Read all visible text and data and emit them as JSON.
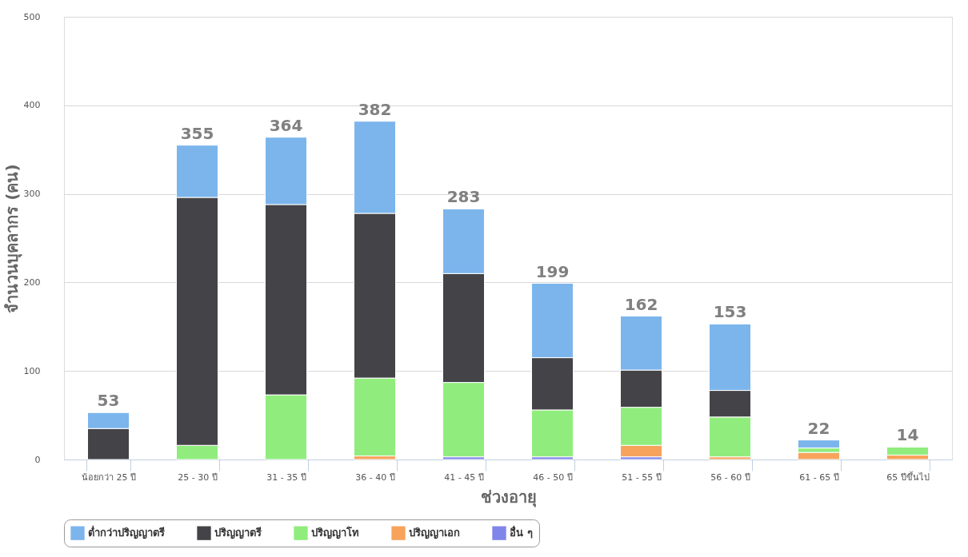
{
  "chart_data": {
    "type": "bar",
    "stacked": true,
    "xlabel": "ช่วงอายุ",
    "ylabel": "จำนวนบุคลากร (คน)",
    "categories": [
      "น้อยกว่า 25 ปี",
      "25 - 30 ปี",
      "31 - 35 ปี",
      "36 - 40 ปี",
      "41 - 45 ปี",
      "46 - 50 ปี",
      "51 - 55 ปี",
      "56 - 60 ปี",
      "61 - 65 ปี",
      "65 ปีขึ้นไป"
    ],
    "series": [
      {
        "name": "อื่น ๆ",
        "color": "#8085e9",
        "values": [
          null,
          null,
          null,
          null,
          3,
          3,
          3,
          null,
          null,
          null
        ]
      },
      {
        "name": "ปริญญาเอก",
        "color": "#f7a35c",
        "values": [
          null,
          null,
          null,
          4,
          null,
          null,
          13,
          3,
          8,
          5
        ]
      },
      {
        "name": "ปริญญาโท",
        "color": "#90ed7d",
        "values": [
          null,
          16,
          73,
          88,
          84,
          53,
          43,
          45,
          5,
          9
        ]
      },
      {
        "name": "ปริญญาตรี",
        "color": "#434348",
        "values": [
          35,
          280,
          215,
          186,
          123,
          59,
          42,
          30,
          null,
          null
        ]
      },
      {
        "name": "ต่ำกว่าปริญญาตรี",
        "color": "#7cb5ec",
        "values": [
          18,
          59,
          76,
          104,
          73,
          84,
          61,
          75,
          9,
          null
        ]
      }
    ],
    "totals": [
      "53",
      "355",
      "364",
      "382",
      "283",
      "199",
      "162",
      "153",
      "22",
      "14"
    ],
    "ylim": [
      0,
      500
    ],
    "yticks": [
      0,
      100,
      200,
      300,
      400,
      500
    ],
    "grid": "y",
    "legend": "bottom"
  }
}
